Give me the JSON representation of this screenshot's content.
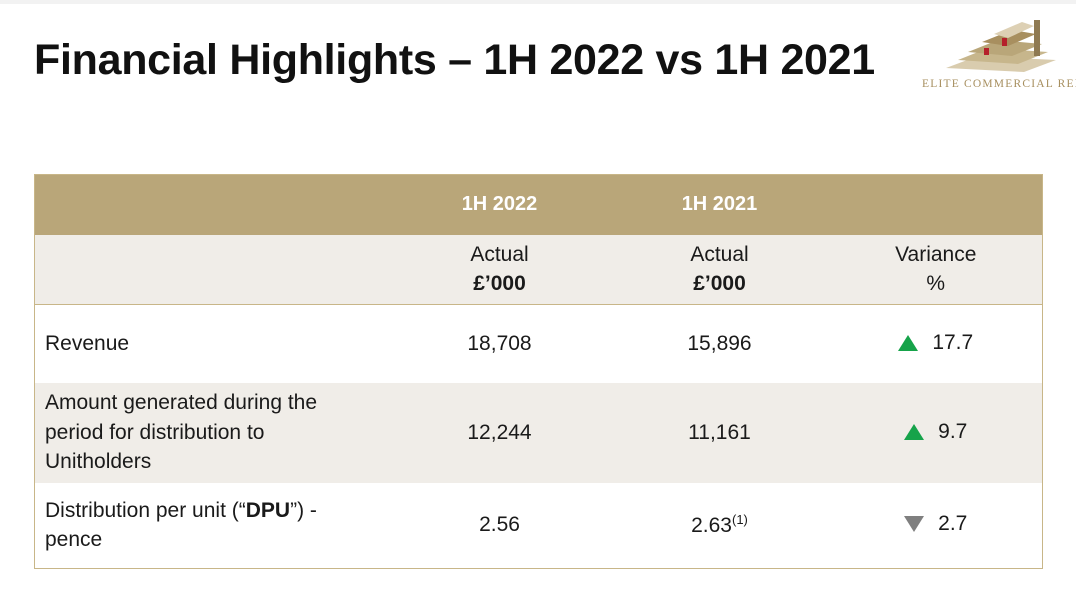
{
  "slide": {
    "title": "Financial Highlights – 1H 2022 vs 1H 2021"
  },
  "logo": {
    "name": "ELITE COMMERCIAL REIT",
    "colors": {
      "gold": "#b9a679",
      "red": "#b5202b"
    }
  },
  "table": {
    "header": {
      "col_1h2022": "1H 2022",
      "col_1h2021": "1H 2021"
    },
    "subheader": {
      "actual_2022": "Actual",
      "unit_2022": "£’000",
      "actual_2021": "Actual",
      "unit_2021": "£’000",
      "variance": "Variance",
      "variance_unit": "%"
    },
    "rows": [
      {
        "label": "Revenue",
        "h1_2022": "18,708",
        "h1_2021": "15,896",
        "direction": "up",
        "variance": "17.7"
      },
      {
        "label_line1": "Amount generated during the",
        "label_line2": "period for distribution to",
        "label_line3": "Unitholders",
        "h1_2022": "12,244",
        "h1_2021": "11,161",
        "direction": "up",
        "variance": "9.7"
      },
      {
        "label_pre": "Distribution per unit (“",
        "label_bold": "DPU",
        "label_post": "”) -",
        "label_line2": "pence",
        "h1_2022": "2.56",
        "h1_2021": "2.63",
        "h1_2021_note": "(1)",
        "direction": "down",
        "variance": "2.7"
      }
    ],
    "colors": {
      "header_bg": "#b9a679",
      "band_bg": "#f0ede8",
      "up": "#16a34a",
      "down": "#7f7f7f"
    }
  }
}
